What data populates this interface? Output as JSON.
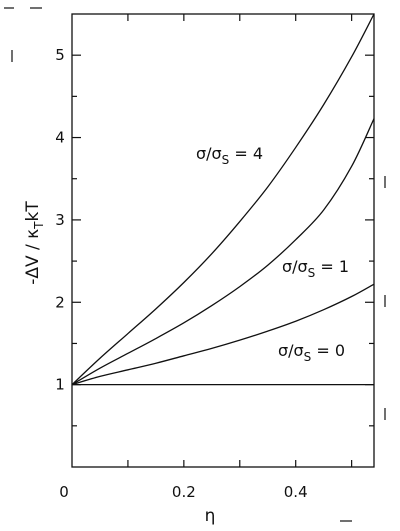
{
  "chart_data": {
    "type": "line",
    "title": "",
    "xlabel": "η",
    "ylabel": "-ΔV / κ_T kT",
    "xlim": [
      0,
      0.54
    ],
    "ylim": [
      0,
      5.5
    ],
    "grid": false,
    "legend": "none",
    "x_ticks": [
      {
        "value": 0.0,
        "label": "0"
      },
      {
        "value": 0.1,
        "label": ""
      },
      {
        "value": 0.2,
        "label": "0.2"
      },
      {
        "value": 0.3,
        "label": ""
      },
      {
        "value": 0.4,
        "label": "0.4"
      },
      {
        "value": 0.5,
        "label": ""
      }
    ],
    "y_ticks": [
      {
        "value": 1,
        "label": "1"
      },
      {
        "value": 2,
        "label": "2"
      },
      {
        "value": 3,
        "label": "3"
      },
      {
        "value": 4,
        "label": "4"
      },
      {
        "value": 5,
        "label": "5"
      }
    ],
    "y_minor_step": 0.5,
    "series": [
      {
        "label": "σ/σS = 0",
        "x": [
          0,
          0.05,
          0.1,
          0.15,
          0.2,
          0.25,
          0.3,
          0.35,
          0.4,
          0.45,
          0.5,
          0.54
        ],
        "y": [
          1.0,
          1.1,
          1.18,
          1.26,
          1.35,
          1.44,
          1.54,
          1.65,
          1.77,
          1.91,
          2.07,
          2.22
        ]
      },
      {
        "label": "σ/σS = 1",
        "x": [
          0,
          0.05,
          0.1,
          0.15,
          0.2,
          0.25,
          0.3,
          0.35,
          0.4,
          0.45,
          0.5,
          0.54
        ],
        "y": [
          1.0,
          1.2,
          1.38,
          1.56,
          1.75,
          1.96,
          2.19,
          2.45,
          2.76,
          3.12,
          3.65,
          4.23
        ]
      },
      {
        "label": "σ/σS = 4",
        "x": [
          0,
          0.05,
          0.1,
          0.15,
          0.2,
          0.25,
          0.3,
          0.35,
          0.4,
          0.45,
          0.5,
          0.54
        ],
        "y": [
          1.0,
          1.32,
          1.62,
          1.92,
          2.24,
          2.59,
          2.98,
          3.4,
          3.88,
          4.4,
          4.98,
          5.5
        ]
      },
      {
        "label": "",
        "x": [
          0,
          0.54
        ],
        "y": [
          1.0,
          1.0
        ]
      }
    ]
  },
  "axis_text": {
    "x": "η",
    "y_main": "-ΔV / κ",
    "y_sub": "T",
    "y_tail": "kT"
  },
  "curve_labels": [
    {
      "main": "σ/σ",
      "sub": "S",
      "tail": " = 4"
    },
    {
      "main": "σ/σ",
      "sub": "S",
      "tail": " = 1"
    },
    {
      "main": "σ/σ",
      "sub": "S",
      "tail": " = 0"
    }
  ]
}
